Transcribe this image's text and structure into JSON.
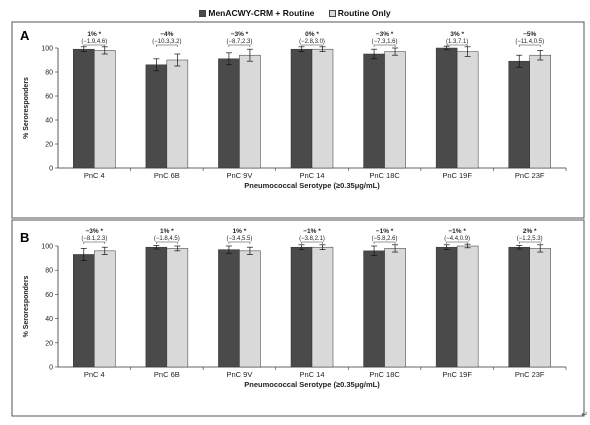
{
  "legend": [
    {
      "name": "MenACWY-CRM + Routine",
      "color": "#4a4a4a"
    },
    {
      "name": "Routine Only",
      "color": "#d9d9d9"
    }
  ],
  "corner_mark": "↵",
  "chart_data": [
    {
      "type": "bar",
      "panel_label": "A",
      "categories": [
        "PnC 4",
        "PnC 6B",
        "PnC 9V",
        "PnC 14",
        "PnC 18C",
        "PnC 19F",
        "PnC 23F"
      ],
      "xlabel": "Pneumococcal Serotype (≥0.35μg/mL)",
      "ylabel": "% Seroresponders",
      "ylim": [
        0,
        100
      ],
      "yticks": [
        0,
        20,
        40,
        60,
        80,
        100
      ],
      "legend_position": "top-center",
      "grid": false,
      "series": [
        {
          "name": "MenACWY-CRM + Routine",
          "color": "#4a4a4a",
          "values": [
            99,
            86,
            91,
            99,
            95,
            100,
            89
          ],
          "errors": [
            2,
            5,
            5,
            2,
            4,
            1.5,
            5
          ]
        },
        {
          "name": "Routine Only",
          "color": "#d9d9d9",
          "values": [
            98,
            90,
            94,
            99,
            97,
            97,
            94
          ],
          "errors": [
            3,
            5,
            5,
            2,
            3,
            4,
            4
          ]
        }
      ],
      "annotations": [
        {
          "diff": "1% *",
          "ci": "(−1.9,4.6)"
        },
        {
          "diff": "−4%",
          "ci": "(−10.3,3.2)"
        },
        {
          "diff": "−3% *",
          "ci": "(−8.7,2.3)"
        },
        {
          "diff": "0% *",
          "ci": "(−2.8,3.0)"
        },
        {
          "diff": "−3% *",
          "ci": "(−7.3,1.6)"
        },
        {
          "diff": "3% *",
          "ci": "(1.3,7.1)"
        },
        {
          "diff": "−5%",
          "ci": "(−11.4,0.5)"
        }
      ]
    },
    {
      "type": "bar",
      "panel_label": "B",
      "categories": [
        "PnC 4",
        "PnC 6B",
        "PnC 9V",
        "PnC 14",
        "PnC 18C",
        "PnC 19F",
        "PnC 23F"
      ],
      "xlabel": "Pneumococcal Serotype (≥0.35μg/mL)",
      "ylabel": "% Seroresponders",
      "ylim": [
        0,
        100
      ],
      "yticks": [
        0,
        20,
        40,
        60,
        80,
        100
      ],
      "legend_position": "top-center",
      "grid": false,
      "series": [
        {
          "name": "MenACWY-CRM + Routine",
          "color": "#4a4a4a",
          "values": [
            93,
            99,
            97,
            99,
            96,
            99,
            99
          ],
          "errors": [
            5,
            1.5,
            3,
            2,
            4,
            2,
            1.5
          ]
        },
        {
          "name": "Routine Only",
          "color": "#d9d9d9",
          "values": [
            96,
            98,
            96,
            99,
            98,
            100,
            98
          ],
          "errors": [
            3,
            2,
            3,
            2,
            3,
            1.5,
            3
          ]
        }
      ],
      "annotations": [
        {
          "diff": "−3% *",
          "ci": "(−8.1,2.3)"
        },
        {
          "diff": "1% *",
          "ci": "(−1.8,4.5)"
        },
        {
          "diff": "1% *",
          "ci": "(−3.4,5.5)"
        },
        {
          "diff": "−1% *",
          "ci": "(−3.8,2.1)"
        },
        {
          "diff": "−1% *",
          "ci": "(−5.8,2.6)"
        },
        {
          "diff": "−1% *",
          "ci": "(−4.4,0.9)"
        },
        {
          "diff": "2% *",
          "ci": "(−1.2,5.3)"
        }
      ]
    }
  ]
}
